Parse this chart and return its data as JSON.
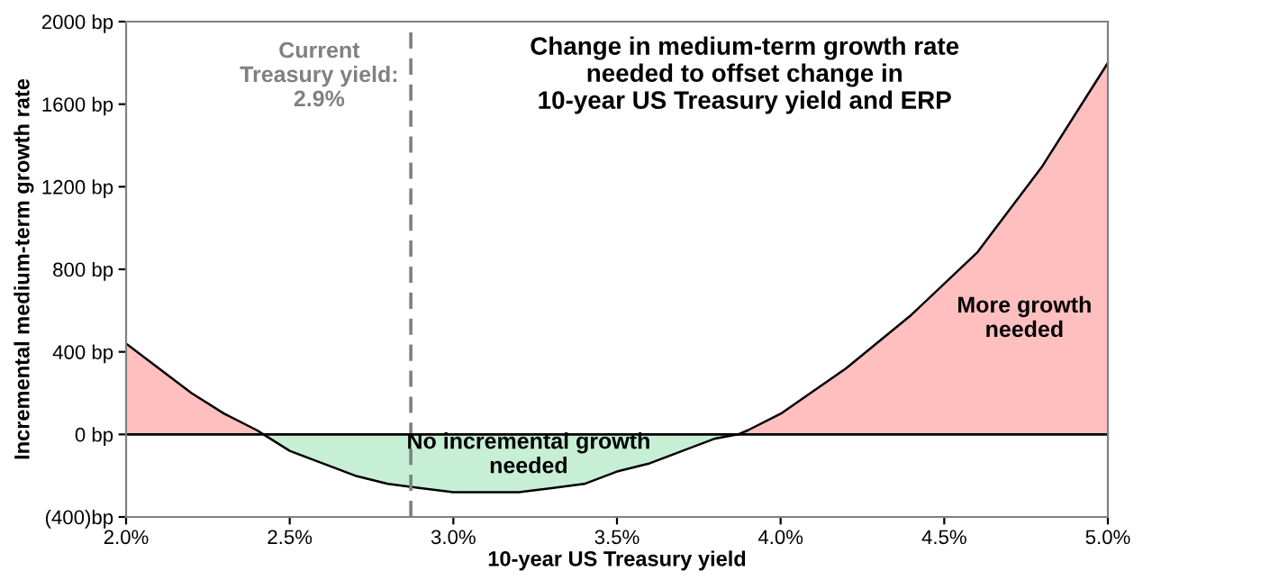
{
  "chart_data": {
    "type": "area",
    "title": "Change in medium-term growth rate\nneeded to offset change in\n10-year US Treasury yield and ERP",
    "xlabel": "10-year US Treasury yield",
    "ylabel": "Incremental medium-term growth rate",
    "x": [
      2.0,
      2.1,
      2.2,
      2.3,
      2.4,
      2.42,
      2.5,
      2.6,
      2.7,
      2.8,
      2.9,
      3.0,
      3.1,
      3.2,
      3.3,
      3.4,
      3.5,
      3.6,
      3.7,
      3.8,
      3.87,
      3.9,
      4.0,
      4.2,
      4.4,
      4.6,
      4.8,
      5.0
    ],
    "series": [
      {
        "color": "#ffbfbf",
        "values": [
          440,
          320,
          200,
          100,
          20,
          0,
          null,
          null,
          null,
          null,
          null,
          null,
          null,
          null,
          null,
          null,
          null,
          null,
          null,
          null,
          0,
          20,
          100,
          320,
          580,
          880,
          1300,
          1800
        ]
      },
      {
        "color": "#c6efd6",
        "values": [
          null,
          null,
          null,
          null,
          null,
          0,
          -80,
          -140,
          -200,
          -240,
          -260,
          -280,
          -280,
          -280,
          -260,
          -240,
          -180,
          -140,
          -80,
          -20,
          0,
          null,
          null,
          null,
          null,
          null,
          null,
          null
        ]
      },
      {
        "type": "line",
        "color": "#000000",
        "values": [
          440,
          320,
          200,
          100,
          20,
          0,
          -80,
          -140,
          -200,
          -240,
          -260,
          -280,
          -280,
          -280,
          -260,
          -240,
          -180,
          -140,
          -80,
          -20,
          0,
          20,
          100,
          320,
          580,
          880,
          1300,
          1800
        ]
      }
    ],
    "xlim": [
      2.0,
      5.0
    ],
    "xticks": [
      {
        "value": 2.0,
        "label": "2.0%"
      },
      {
        "value": 2.5,
        "label": "2.5%"
      },
      {
        "value": 3.0,
        "label": "3.0%"
      },
      {
        "value": 3.5,
        "label": "3.5%"
      },
      {
        "value": 4.0,
        "label": "4.0%"
      },
      {
        "value": 4.5,
        "label": "4.5%"
      },
      {
        "value": 5.0,
        "label": "5.0%"
      }
    ],
    "ylim": [
      -400,
      2000
    ],
    "yticks": [
      {
        "value": -400,
        "label": "(400)bp"
      },
      {
        "value": 0,
        "label": "0 bp"
      },
      {
        "value": 400,
        "label": "400 bp"
      },
      {
        "value": 800,
        "label": "800 bp"
      },
      {
        "value": 1200,
        "label": "1200 bp"
      },
      {
        "value": 1600,
        "label": "1600 bp"
      },
      {
        "value": 2000,
        "label": "2000 bp"
      }
    ],
    "ref_lines": [
      {
        "axis": "x",
        "value": 2.87,
        "label": "Current\nTreasury yield:\n2.9%",
        "color": "#808080",
        "line_style": "dashed"
      },
      {
        "axis": "y",
        "value": 0,
        "color": "#000000",
        "line_style": "solid"
      }
    ],
    "annotations": [
      "More growth\nneeded",
      "No incremental growth\nneeded"
    ],
    "grid": false
  }
}
